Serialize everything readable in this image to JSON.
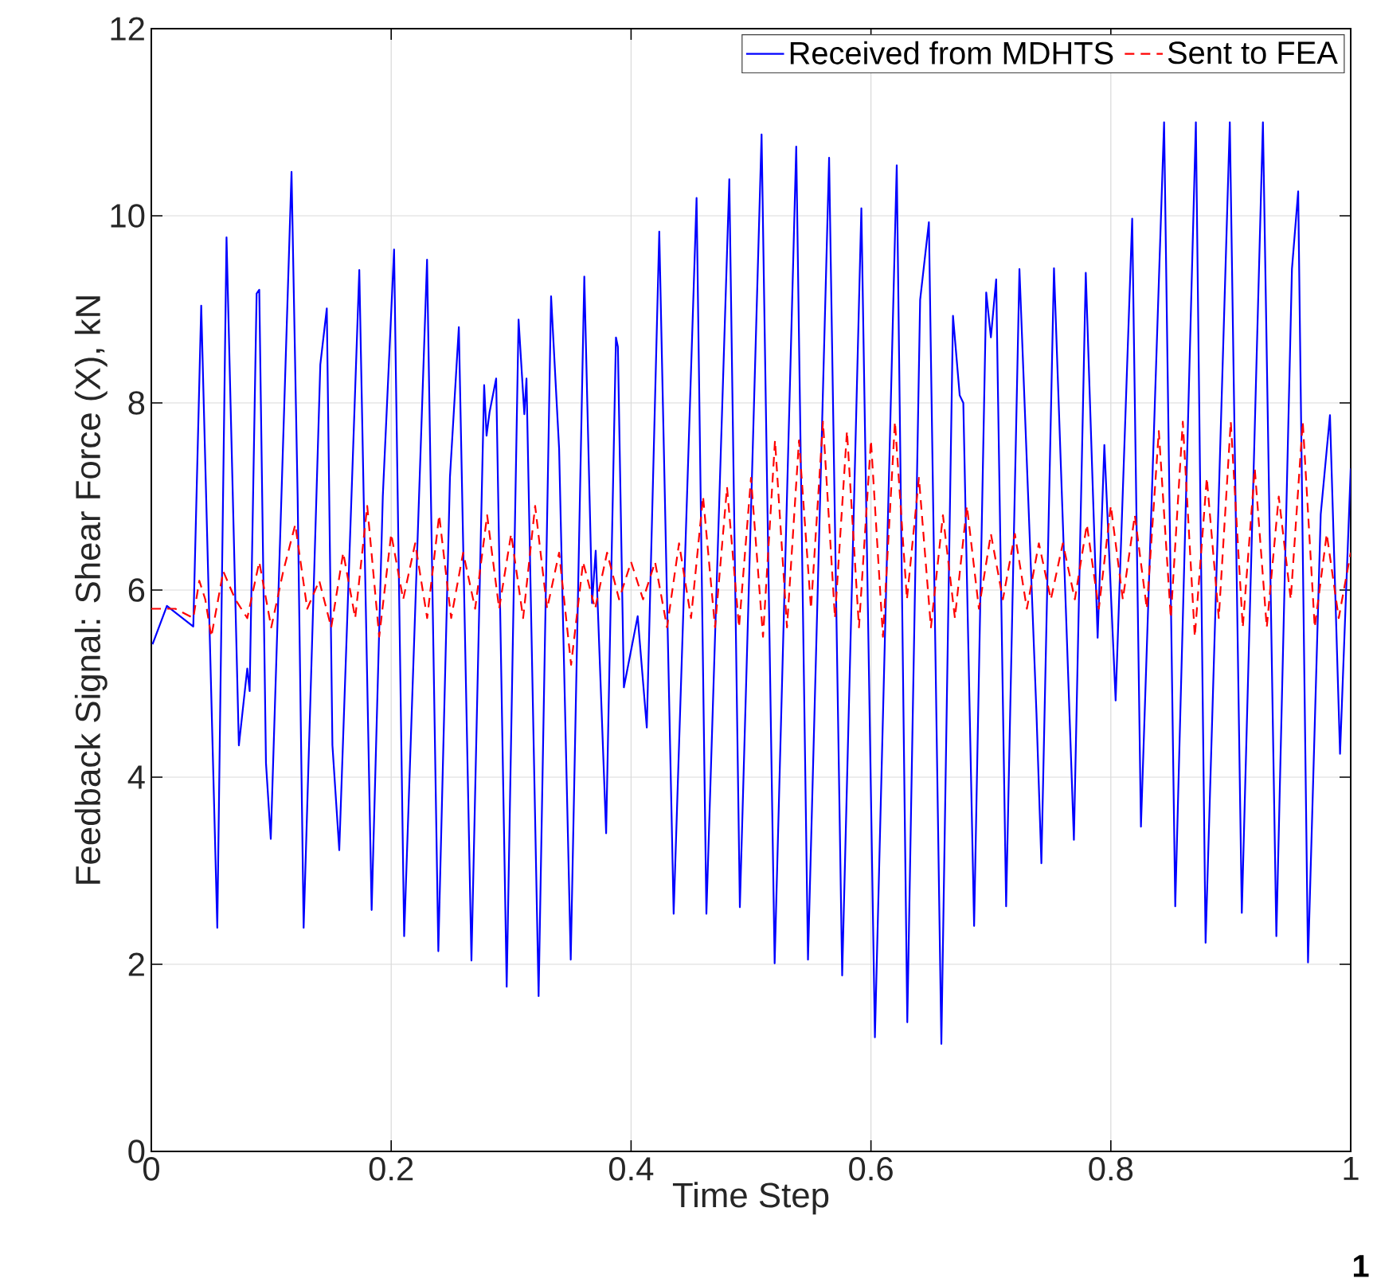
{
  "chart_data": {
    "type": "line",
    "xlabel": "Time Step",
    "ylabel": "Feedback Signal: Shear Force (X), kN",
    "xlim": [
      0,
      1
    ],
    "ylim": [
      0,
      12
    ],
    "xticks": [
      0,
      0.2,
      0.4,
      0.6,
      0.8,
      1
    ],
    "yticks": [
      0,
      2,
      4,
      6,
      8,
      10,
      12
    ],
    "grid": true,
    "legend": "top right",
    "marker": "none",
    "annotations": [
      "1"
    ],
    "series": [
      {
        "name": "Received from MDHTS",
        "color": "#0000ff",
        "line_style": "solid",
        "x": [
          0.001,
          0.013,
          0.035,
          0.0416,
          0.055,
          0.0627,
          0.073,
          0.08,
          0.082,
          0.0878,
          0.09,
          0.0956,
          0.0996,
          0.1169,
          0.122,
          0.127,
          0.1409,
          0.1463,
          0.151,
          0.1567,
          0.1734,
          0.1837,
          0.193,
          0.2024,
          0.2108,
          0.2299,
          0.2393,
          0.249,
          0.2564,
          0.2669,
          0.2775,
          0.2795,
          0.282,
          0.2875,
          0.2963,
          0.3062,
          0.311,
          0.3128,
          0.3229,
          0.3333,
          0.34,
          0.3497,
          0.361,
          0.3675,
          0.3705,
          0.3792,
          0.3874,
          0.389,
          0.394,
          0.4055,
          0.4131,
          0.4235,
          0.4355,
          0.4546,
          0.4628,
          0.4819,
          0.4907,
          0.5088,
          0.5197,
          0.5377,
          0.5475,
          0.5651,
          0.576,
          0.592,
          0.6033,
          0.6215,
          0.6303,
          0.641,
          0.6483,
          0.6587,
          0.6684,
          0.674,
          0.677,
          0.686,
          0.6961,
          0.7,
          0.7044,
          0.7127,
          0.7238,
          0.738,
          0.7421,
          0.7526,
          0.7692,
          0.7791,
          0.789,
          0.7946,
          0.804,
          0.8178,
          0.8251,
          0.8444,
          0.8537,
          0.8709,
          0.879,
          0.8992,
          0.9092,
          0.9268,
          0.938,
          0.951,
          0.9562,
          0.9644,
          0.975,
          0.9827,
          0.9911,
          1.0
        ],
        "values": [
          5.42,
          5.83,
          5.61,
          9.04,
          2.39,
          9.77,
          4.34,
          5.16,
          4.92,
          9.17,
          9.21,
          4.15,
          3.34,
          10.47,
          7.0,
          2.39,
          8.41,
          9.01,
          4.34,
          3.22,
          9.42,
          2.58,
          7.0,
          9.64,
          2.3,
          9.53,
          2.14,
          7.21,
          8.81,
          2.04,
          8.19,
          7.65,
          7.9,
          8.26,
          1.76,
          8.89,
          7.88,
          8.26,
          1.66,
          9.14,
          7.51,
          2.05,
          9.35,
          5.86,
          6.42,
          3.4,
          8.7,
          8.6,
          4.96,
          5.72,
          4.53,
          9.83,
          2.54,
          10.19,
          2.54,
          10.39,
          2.61,
          10.87,
          2.01,
          10.74,
          2.05,
          10.62,
          1.88,
          10.08,
          1.22,
          10.54,
          1.38,
          9.1,
          9.93,
          1.15,
          8.93,
          8.08,
          8.0,
          2.41,
          9.18,
          8.7,
          9.32,
          2.62,
          9.43,
          4.68,
          3.08,
          9.44,
          3.33,
          9.39,
          5.49,
          7.55,
          4.82,
          9.97,
          3.47,
          11.0,
          2.62,
          11.0,
          2.23,
          11.0,
          2.55,
          11.0,
          2.3,
          9.43,
          10.26,
          2.02,
          6.81,
          7.87,
          4.25,
          7.3
        ]
      },
      {
        "name": "Sent to FEA",
        "color": "#ff0000",
        "line_style": "dashed",
        "x": [
          0,
          0.02,
          0.035,
          0.04,
          0.045,
          0.05,
          0.06,
          0.07,
          0.08,
          0.09,
          0.1,
          0.11,
          0.12,
          0.13,
          0.14,
          0.15,
          0.16,
          0.17,
          0.18,
          0.19,
          0.2,
          0.21,
          0.22,
          0.23,
          0.24,
          0.25,
          0.26,
          0.27,
          0.28,
          0.29,
          0.3,
          0.31,
          0.32,
          0.33,
          0.34,
          0.35,
          0.36,
          0.37,
          0.38,
          0.39,
          0.4,
          0.41,
          0.42,
          0.43,
          0.44,
          0.45,
          0.46,
          0.47,
          0.48,
          0.49,
          0.5,
          0.51,
          0.52,
          0.53,
          0.54,
          0.55,
          0.56,
          0.57,
          0.58,
          0.59,
          0.6,
          0.61,
          0.62,
          0.63,
          0.64,
          0.65,
          0.66,
          0.67,
          0.68,
          0.69,
          0.7,
          0.71,
          0.72,
          0.73,
          0.74,
          0.75,
          0.76,
          0.77,
          0.78,
          0.79,
          0.8,
          0.81,
          0.82,
          0.83,
          0.84,
          0.85,
          0.86,
          0.87,
          0.88,
          0.89,
          0.9,
          0.91,
          0.92,
          0.93,
          0.94,
          0.95,
          0.96,
          0.97,
          0.98,
          0.99,
          1.0
        ],
        "values": [
          5.8,
          5.8,
          5.7,
          6.1,
          5.9,
          5.5,
          6.2,
          5.9,
          5.7,
          6.3,
          5.6,
          6.2,
          6.7,
          5.8,
          6.1,
          5.6,
          6.4,
          5.7,
          6.9,
          5.5,
          6.6,
          5.9,
          6.5,
          5.7,
          6.8,
          5.7,
          6.4,
          5.8,
          6.8,
          5.8,
          6.6,
          5.7,
          6.9,
          5.8,
          6.4,
          5.2,
          6.3,
          5.8,
          6.4,
          5.9,
          6.3,
          5.9,
          6.3,
          5.6,
          6.5,
          5.7,
          7.0,
          5.6,
          7.1,
          5.6,
          7.2,
          5.5,
          7.6,
          5.6,
          7.6,
          5.8,
          7.8,
          5.7,
          7.7,
          5.6,
          7.6,
          5.5,
          7.8,
          5.9,
          7.2,
          5.6,
          6.8,
          5.7,
          6.9,
          5.8,
          6.6,
          5.9,
          6.6,
          5.8,
          6.5,
          5.9,
          6.5,
          5.9,
          6.7,
          5.8,
          6.9,
          5.9,
          6.8,
          5.8,
          7.7,
          5.7,
          7.8,
          5.5,
          7.2,
          5.7,
          7.8,
          5.6,
          7.3,
          5.6,
          7.0,
          5.9,
          7.8,
          5.6,
          6.6,
          5.7,
          6.4
        ]
      }
    ]
  }
}
